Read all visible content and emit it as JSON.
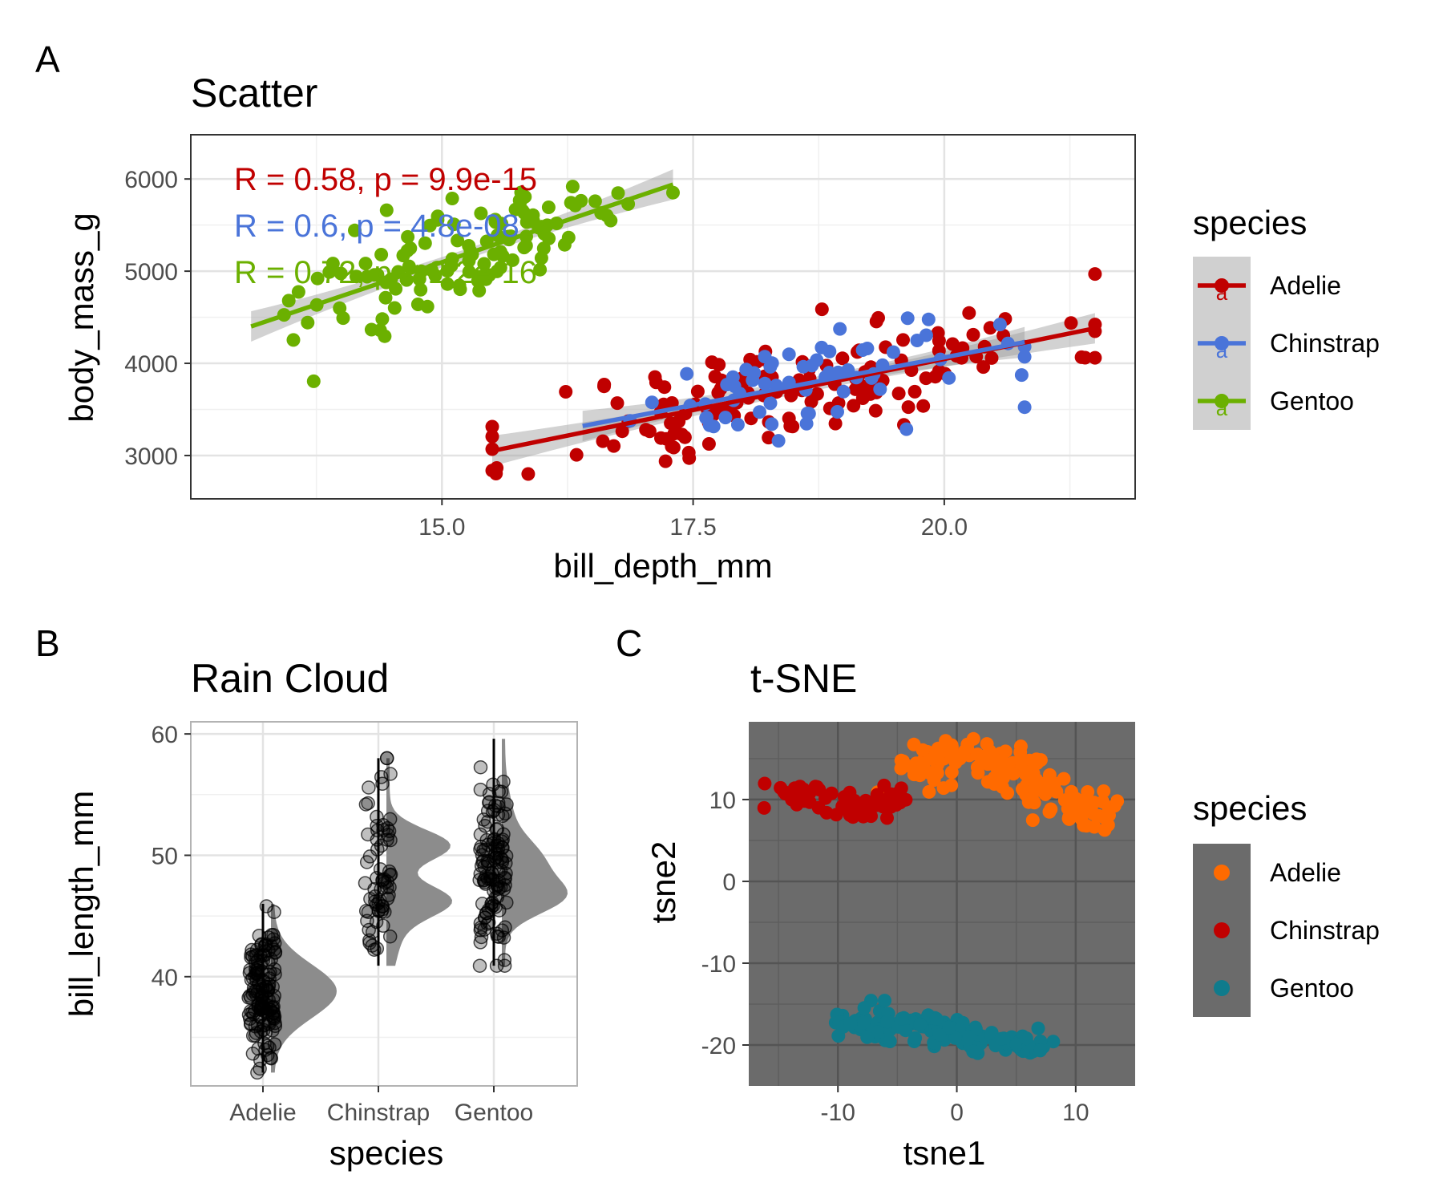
{
  "colors": {
    "adelie": "#c00000",
    "chinstrap": "#4a74d9",
    "gentoo": "#6bb000",
    "tsne_adelie": "#ff6a00",
    "tsne_chinstrap": "#c00000",
    "tsne_gentoo": "#0f7b8c",
    "panel_dark": "#6b6b6b",
    "ribbon": "#9b9b9b",
    "violin": "#8c8c8c"
  },
  "chart_data": [
    {
      "panel": "A",
      "type": "scatter",
      "title": "Scatter",
      "xlabel": "bill_depth_mm",
      "ylabel": "body_mass_g",
      "xlim": [
        12.5,
        21.9
      ],
      "ylim": [
        2530,
        6480
      ],
      "xticks": [
        15.0,
        17.5,
        20.0
      ],
      "xtick_labels": [
        "15.0",
        "17.5",
        "20.0"
      ],
      "yticks": [
        3000,
        4000,
        5000,
        6000
      ],
      "ytick_labels": [
        "3000",
        "4000",
        "5000",
        "6000"
      ],
      "grid": true,
      "legend": {
        "title": "species",
        "position": "right",
        "entries": [
          "Adelie",
          "Chinstrap",
          "Gentoo"
        ],
        "key_glyph": "a"
      },
      "series": [
        {
          "name": "Adelie",
          "color_key": "adelie",
          "x_range": [
            15.5,
            21.5
          ],
          "y_center": 3700,
          "slope": 225,
          "sd": 330,
          "n": 152,
          "seed": 11,
          "fit": {
            "x": [
              15.5,
              21.5
            ],
            "y": [
              3050,
              4380
            ]
          }
        },
        {
          "name": "Chinstrap",
          "color_key": "chinstrap",
          "x_range": [
            16.4,
            20.8
          ],
          "y_center": 3730,
          "slope": 220,
          "sd": 300,
          "n": 68,
          "seed": 29,
          "fit": {
            "x": [
              16.4,
              20.8
            ],
            "y": [
              3320,
              4230
            ]
          }
        },
        {
          "name": "Gentoo",
          "color_key": "gentoo",
          "x_range": [
            13.1,
            17.3
          ],
          "y_center": 5080,
          "slope": 390,
          "sd": 290,
          "n": 123,
          "seed": 47,
          "fit": {
            "x": [
              13.1,
              17.3
            ],
            "y": [
              4400,
              5940
            ]
          }
        }
      ],
      "stats": [
        {
          "text": "R = 0.58, p = 9.9e-15",
          "color_key": "adelie"
        },
        {
          "text": "R = 0.6, p = 4.8e-08",
          "color_key": "chinstrap"
        },
        {
          "text": "R = 0.72, p < 2.2e-16",
          "color_key": "gentoo"
        }
      ]
    },
    {
      "panel": "B",
      "type": "raincloud",
      "title": "Rain Cloud",
      "xlabel": "species",
      "ylabel": "bill_length_mm",
      "categories": [
        "Adelie",
        "Chinstrap",
        "Gentoo"
      ],
      "ylim": [
        31,
        61
      ],
      "yticks": [
        40,
        50,
        60
      ],
      "ytick_labels": [
        "40",
        "50",
        "60"
      ],
      "grid": true,
      "groups": [
        {
          "name": "Adelie",
          "min": 32.1,
          "max": 46.0,
          "q1": 36.8,
          "median": 38.8,
          "q3": 40.8,
          "n": 152,
          "modes": [
            [
              38.8,
              2.2,
              1.0
            ]
          ],
          "seed": 5
        },
        {
          "name": "Chinstrap",
          "min": 40.9,
          "max": 58.0,
          "q1": 46.3,
          "median": 49.5,
          "q3": 51.1,
          "n": 68,
          "modes": [
            [
              46.3,
              1.3,
              0.9
            ],
            [
              50.8,
              1.3,
              1.0
            ],
            [
              44.0,
              2.5,
              0.2
            ]
          ],
          "seed": 17
        },
        {
          "name": "Gentoo",
          "min": 40.9,
          "max": 59.6,
          "q1": 45.3,
          "median": 47.3,
          "q3": 49.6,
          "n": 123,
          "modes": [
            [
              46.5,
              1.4,
              1.0
            ],
            [
              49.5,
              1.8,
              0.7
            ],
            [
              53.5,
              2.0,
              0.12
            ]
          ],
          "seed": 23
        }
      ]
    },
    {
      "panel": "C",
      "type": "scatter",
      "title": "t-SNE",
      "xlabel": "tsne1",
      "ylabel": "tsne2",
      "xlim": [
        -17.5,
        15
      ],
      "ylim": [
        -25,
        19.5
      ],
      "xticks": [
        -10,
        0,
        10
      ],
      "xtick_labels": [
        "-10",
        "0",
        "10"
      ],
      "yticks": [
        -20,
        -10,
        0,
        10
      ],
      "ytick_labels": [
        "-20",
        "-10",
        "0",
        "10"
      ],
      "grid": true,
      "legend": {
        "title": "species",
        "position": "right",
        "entries": [
          "Adelie",
          "Chinstrap",
          "Gentoo"
        ]
      },
      "series": [
        {
          "name": "Adelie",
          "color_key": "tsne_adelie",
          "n": 152,
          "seed": 61,
          "path": [
            [
              -4,
              13
            ],
            [
              -1,
              15
            ],
            [
              2,
              15.5
            ],
            [
              5,
              14
            ],
            [
              6,
              12
            ],
            [
              8,
              10
            ],
            [
              10,
              9
            ],
            [
              12,
              8
            ]
          ],
          "spread": 1.4
        },
        {
          "name": "Chinstrap",
          "color_key": "tsne_chinstrap",
          "n": 68,
          "seed": 73,
          "path": [
            [
              -16,
              10.5
            ],
            [
              -13,
              10.5
            ],
            [
              -10,
              10
            ],
            [
              -8,
              9
            ],
            [
              -6,
              10.5
            ],
            [
              -5,
              10
            ]
          ],
          "spread": 0.9
        },
        {
          "name": "Gentoo",
          "color_key": "tsne_gentoo",
          "n": 123,
          "seed": 89,
          "path": [
            [
              -10,
              -17
            ],
            [
              -7,
              -17
            ],
            [
              -4,
              -17.5
            ],
            [
              -1,
              -18.5
            ],
            [
              2,
              -19
            ],
            [
              5,
              -20
            ],
            [
              8,
              -20
            ]
          ],
          "spread": 0.9
        }
      ]
    }
  ],
  "panel_letters": [
    "A",
    "B",
    "C"
  ]
}
